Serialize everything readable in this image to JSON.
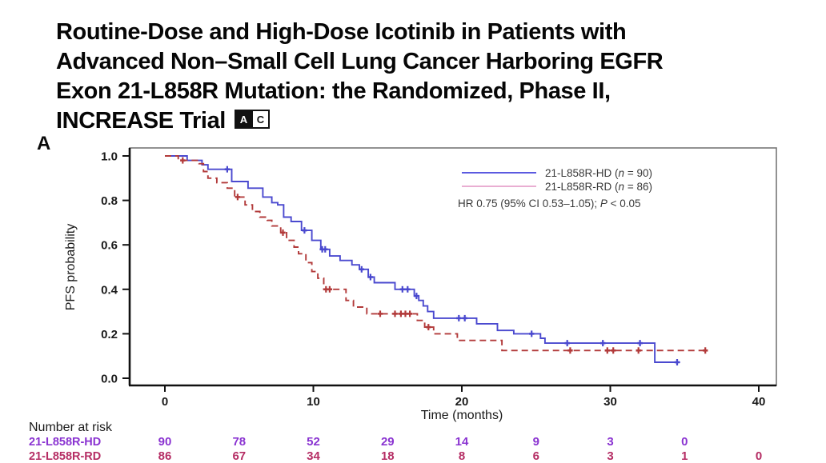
{
  "slide": {
    "title_lines": [
      "Routine-Dose and High-Dose Icotinib in Patients with",
      "Advanced Non–Small Cell Lung Cancer Harboring EGFR",
      "Exon 21-L858R Mutation: the Randomized, Phase II,",
      "INCREASE Trial"
    ],
    "badges": {
      "a": "A",
      "c": "C"
    },
    "panel_label": "A"
  },
  "colors": {
    "hd_curve": "#4a49cf",
    "rd_curve": "#b23a3a",
    "hd_legend_swatch": "#5b5ae0",
    "rd_legend_swatch": "#e9aed2",
    "hd_risk_text": "#8a33d1",
    "rd_risk_text": "#b52d64",
    "axis": "#111111",
    "plot_border": "#777777",
    "legend_text": "#3a3a3a",
    "tick_text": "#1a1a1a"
  },
  "chart_data": {
    "type": "line",
    "subtype": "kaplan-meier-step",
    "title": "",
    "xlabel": "Time (months)",
    "ylabel": "PFS probability",
    "xlim": [
      0,
      40
    ],
    "ylim": [
      0.0,
      1.0
    ],
    "x_ticks": [
      0,
      10,
      20,
      30,
      40
    ],
    "y_tick_labels": [
      "0.0",
      "0.2",
      "0.4",
      "0.6",
      "0.8",
      "1.0"
    ],
    "grid": false,
    "legend_position": "top-right-inside",
    "series": [
      {
        "name": "21-L858R-HD",
        "n": 90,
        "style": "solid",
        "end_t": 34.7,
        "steps": [
          [
            0,
            1.0
          ],
          [
            1.5,
            0.98
          ],
          [
            2.5,
            0.96
          ],
          [
            2.9,
            0.94
          ],
          [
            4.5,
            0.885
          ],
          [
            5.6,
            0.855
          ],
          [
            6.6,
            0.815
          ],
          [
            7.2,
            0.79
          ],
          [
            7.6,
            0.78
          ],
          [
            8.0,
            0.725
          ],
          [
            8.5,
            0.705
          ],
          [
            9.2,
            0.665
          ],
          [
            9.9,
            0.62
          ],
          [
            10.5,
            0.58
          ],
          [
            11.1,
            0.55
          ],
          [
            11.8,
            0.53
          ],
          [
            12.6,
            0.51
          ],
          [
            13.1,
            0.49
          ],
          [
            13.7,
            0.455
          ],
          [
            14.1,
            0.43
          ],
          [
            15.5,
            0.4
          ],
          [
            16.8,
            0.37
          ],
          [
            17.1,
            0.35
          ],
          [
            17.4,
            0.325
          ],
          [
            17.7,
            0.3
          ],
          [
            18.1,
            0.27
          ],
          [
            21.0,
            0.245
          ],
          [
            22.4,
            0.215
          ],
          [
            23.5,
            0.2
          ],
          [
            25.3,
            0.18
          ],
          [
            25.6,
            0.158
          ],
          [
            33.0,
            0.072
          ]
        ],
        "censors": [
          [
            4.2,
            0.94
          ],
          [
            9.4,
            0.665
          ],
          [
            10.6,
            0.58
          ],
          [
            10.8,
            0.58
          ],
          [
            13.25,
            0.49
          ],
          [
            13.85,
            0.455
          ],
          [
            16.0,
            0.4
          ],
          [
            16.35,
            0.4
          ],
          [
            16.95,
            0.37
          ],
          [
            19.8,
            0.27
          ],
          [
            20.2,
            0.27
          ],
          [
            24.7,
            0.2
          ],
          [
            27.1,
            0.158
          ],
          [
            29.5,
            0.158
          ],
          [
            32.0,
            0.158
          ],
          [
            34.5,
            0.072
          ]
        ]
      },
      {
        "name": "21-L858R-RD",
        "n": 86,
        "style": "dashed",
        "end_t": 36.6,
        "steps": [
          [
            0,
            1.0
          ],
          [
            0.9,
            0.98
          ],
          [
            2.3,
            0.965
          ],
          [
            2.6,
            0.93
          ],
          [
            2.9,
            0.9
          ],
          [
            3.5,
            0.88
          ],
          [
            4.2,
            0.855
          ],
          [
            4.7,
            0.815
          ],
          [
            5.4,
            0.78
          ],
          [
            5.9,
            0.75
          ],
          [
            6.4,
            0.725
          ],
          [
            6.9,
            0.71
          ],
          [
            7.2,
            0.685
          ],
          [
            7.8,
            0.655
          ],
          [
            8.2,
            0.62
          ],
          [
            8.7,
            0.59
          ],
          [
            9.0,
            0.56
          ],
          [
            9.5,
            0.52
          ],
          [
            9.9,
            0.48
          ],
          [
            10.3,
            0.45
          ],
          [
            10.7,
            0.4
          ],
          [
            12.2,
            0.35
          ],
          [
            12.7,
            0.32
          ],
          [
            13.6,
            0.29
          ],
          [
            17.0,
            0.26
          ],
          [
            17.5,
            0.23
          ],
          [
            18.1,
            0.2
          ],
          [
            19.7,
            0.17
          ],
          [
            22.7,
            0.125
          ]
        ],
        "censors": [
          [
            1.2,
            0.98
          ],
          [
            4.9,
            0.815
          ],
          [
            7.95,
            0.655
          ],
          [
            10.85,
            0.4
          ],
          [
            11.1,
            0.4
          ],
          [
            14.5,
            0.29
          ],
          [
            15.5,
            0.29
          ],
          [
            15.9,
            0.29
          ],
          [
            16.2,
            0.29
          ],
          [
            16.5,
            0.29
          ],
          [
            17.75,
            0.23
          ],
          [
            27.3,
            0.125
          ],
          [
            29.8,
            0.125
          ],
          [
            30.2,
            0.125
          ],
          [
            31.9,
            0.125
          ],
          [
            36.4,
            0.125
          ]
        ]
      }
    ],
    "legend": {
      "entries": [
        {
          "pre": "21-L858R-HD (",
          "n_var": "n",
          "post": " = 90)"
        },
        {
          "pre": "21-L858R-RD (",
          "n_var": "n",
          "post": " = 86)"
        }
      ],
      "hr_line": {
        "pre": "HR 0.75 (95% CI 0.53–1.05); ",
        "p_var": "P",
        "post": " < 0.05"
      }
    },
    "risk_table": {
      "header": "Number at risk",
      "times": [
        0,
        5,
        10,
        15,
        20,
        25,
        30,
        35,
        40
      ],
      "rows": [
        {
          "label": "21-L858R-HD",
          "values": [
            90,
            78,
            52,
            29,
            14,
            9,
            3,
            0,
            null
          ]
        },
        {
          "label": "21-L858R-RD",
          "values": [
            86,
            67,
            34,
            18,
            8,
            6,
            3,
            1,
            0
          ]
        }
      ]
    }
  }
}
